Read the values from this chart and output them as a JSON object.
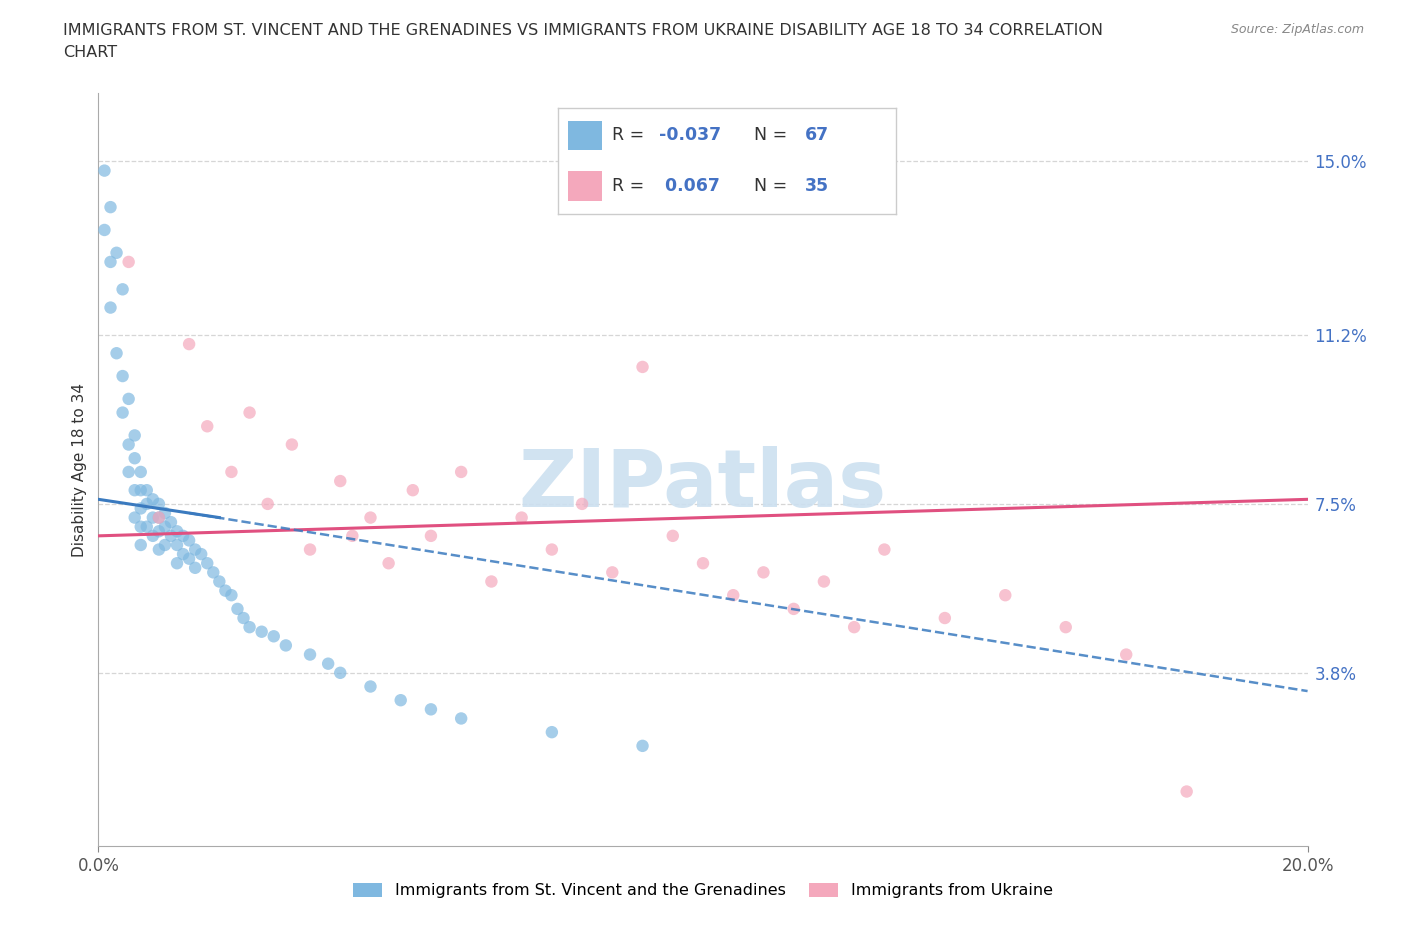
{
  "title_line1": "IMMIGRANTS FROM ST. VINCENT AND THE GRENADINES VS IMMIGRANTS FROM UKRAINE DISABILITY AGE 18 TO 34 CORRELATION",
  "title_line2": "CHART",
  "source": "Source: ZipAtlas.com",
  "ylabel": "Disability Age 18 to 34",
  "xlim": [
    0.0,
    0.2
  ],
  "ylim": [
    0.0,
    0.165
  ],
  "ytick_positions": [
    0.038,
    0.075,
    0.112,
    0.15
  ],
  "ytick_labels": [
    "3.8%",
    "7.5%",
    "11.2%",
    "15.0%"
  ],
  "blue_color": "#7fb8e0",
  "pink_color": "#f4a8bc",
  "blue_line_color": "#3a7abf",
  "pink_line_color": "#e05080",
  "watermark_color": "#cce0f0",
  "label1": "Immigrants from St. Vincent and the Grenadines",
  "label2": "Immigrants from Ukraine",
  "blue_x": [
    0.001,
    0.001,
    0.002,
    0.002,
    0.002,
    0.003,
    0.003,
    0.004,
    0.004,
    0.004,
    0.005,
    0.005,
    0.005,
    0.006,
    0.006,
    0.006,
    0.006,
    0.007,
    0.007,
    0.007,
    0.007,
    0.007,
    0.008,
    0.008,
    0.008,
    0.009,
    0.009,
    0.009,
    0.01,
    0.01,
    0.01,
    0.01,
    0.011,
    0.011,
    0.011,
    0.012,
    0.012,
    0.013,
    0.013,
    0.013,
    0.014,
    0.014,
    0.015,
    0.015,
    0.016,
    0.016,
    0.017,
    0.018,
    0.019,
    0.02,
    0.021,
    0.022,
    0.023,
    0.024,
    0.025,
    0.027,
    0.029,
    0.031,
    0.035,
    0.038,
    0.04,
    0.045,
    0.05,
    0.055,
    0.06,
    0.075,
    0.09
  ],
  "blue_y": [
    0.148,
    0.135,
    0.14,
    0.128,
    0.118,
    0.13,
    0.108,
    0.122,
    0.103,
    0.095,
    0.098,
    0.088,
    0.082,
    0.09,
    0.085,
    0.078,
    0.072,
    0.082,
    0.078,
    0.074,
    0.07,
    0.066,
    0.078,
    0.075,
    0.07,
    0.076,
    0.072,
    0.068,
    0.075,
    0.072,
    0.069,
    0.065,
    0.073,
    0.07,
    0.066,
    0.071,
    0.068,
    0.069,
    0.066,
    0.062,
    0.068,
    0.064,
    0.067,
    0.063,
    0.065,
    0.061,
    0.064,
    0.062,
    0.06,
    0.058,
    0.056,
    0.055,
    0.052,
    0.05,
    0.048,
    0.047,
    0.046,
    0.044,
    0.042,
    0.04,
    0.038,
    0.035,
    0.032,
    0.03,
    0.028,
    0.025,
    0.022
  ],
  "pink_x": [
    0.005,
    0.01,
    0.015,
    0.018,
    0.022,
    0.025,
    0.028,
    0.032,
    0.035,
    0.04,
    0.042,
    0.045,
    0.048,
    0.052,
    0.055,
    0.06,
    0.065,
    0.07,
    0.075,
    0.08,
    0.085,
    0.09,
    0.095,
    0.1,
    0.105,
    0.11,
    0.115,
    0.12,
    0.125,
    0.13,
    0.14,
    0.15,
    0.16,
    0.17,
    0.18
  ],
  "pink_y": [
    0.128,
    0.072,
    0.11,
    0.092,
    0.082,
    0.095,
    0.075,
    0.088,
    0.065,
    0.08,
    0.068,
    0.072,
    0.062,
    0.078,
    0.068,
    0.082,
    0.058,
    0.072,
    0.065,
    0.075,
    0.06,
    0.105,
    0.068,
    0.062,
    0.055,
    0.06,
    0.052,
    0.058,
    0.048,
    0.065,
    0.05,
    0.055,
    0.048,
    0.042,
    0.012
  ],
  "blue_trend_start_y": 0.076,
  "blue_trend_end_y": 0.034,
  "pink_trend_start_y": 0.068,
  "pink_trend_end_y": 0.076
}
